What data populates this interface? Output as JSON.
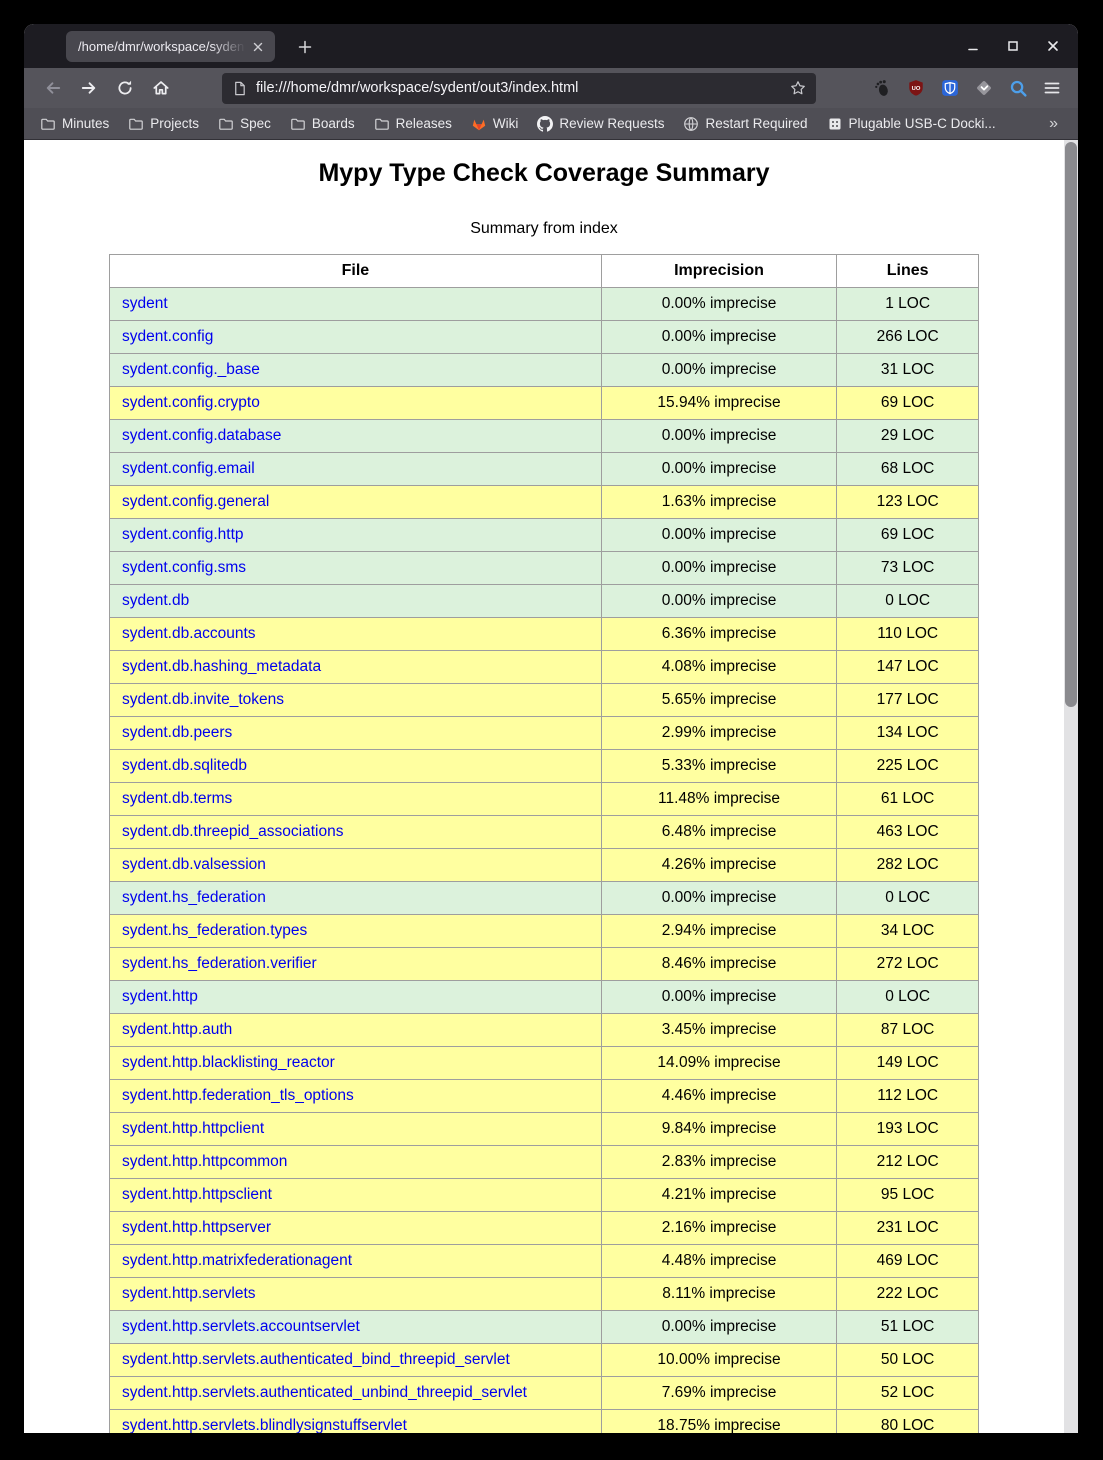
{
  "window": {
    "tab_title": "/home/dmr/workspace/syden",
    "url": "file:///home/dmr/workspace/sydent/out3/index.html",
    "controls": [
      "minimize",
      "maximize",
      "close"
    ]
  },
  "toolbar": {
    "nav_icons": [
      "back-icon",
      "forward-icon",
      "refresh-icon",
      "home-icon"
    ],
    "urlbar_icons": [
      "page-icon",
      "star-icon"
    ],
    "extension_icons": [
      "gnome-foot-icon",
      "ublock-origin-icon",
      "bitwarden-icon",
      "diamond-extension-icon",
      "search-icon",
      "hamburger-menu-icon"
    ],
    "ublock_badge_text": "UO"
  },
  "bookmarks": {
    "items": [
      {
        "label": "Minutes",
        "icon": "folder-icon"
      },
      {
        "label": "Projects",
        "icon": "folder-icon"
      },
      {
        "label": "Spec",
        "icon": "folder-icon"
      },
      {
        "label": "Boards",
        "icon": "folder-icon"
      },
      {
        "label": "Releases",
        "icon": "folder-icon"
      },
      {
        "label": "Wiki",
        "icon": "gitlab-icon"
      },
      {
        "label": "Review Requests",
        "icon": "github-icon"
      },
      {
        "label": "Restart Required",
        "icon": "globe-icon"
      },
      {
        "label": "Plugable USB-C Docki...",
        "icon": "device-icon"
      }
    ],
    "overflow_chevron": "»"
  },
  "page": {
    "title": "Mypy Type Check Coverage Summary",
    "caption": "Summary from index",
    "table": {
      "headers": [
        "File",
        "Imprecision",
        "Lines"
      ],
      "rows": [
        {
          "file": "sydent",
          "imprecision": "0.00% imprecise",
          "lines": "1 LOC",
          "quality": "good"
        },
        {
          "file": "sydent.config",
          "imprecision": "0.00% imprecise",
          "lines": "266 LOC",
          "quality": "good"
        },
        {
          "file": "sydent.config._base",
          "imprecision": "0.00% imprecise",
          "lines": "31 LOC",
          "quality": "good"
        },
        {
          "file": "sydent.config.crypto",
          "imprecision": "15.94% imprecise",
          "lines": "69 LOC",
          "quality": "warn"
        },
        {
          "file": "sydent.config.database",
          "imprecision": "0.00% imprecise",
          "lines": "29 LOC",
          "quality": "good"
        },
        {
          "file": "sydent.config.email",
          "imprecision": "0.00% imprecise",
          "lines": "68 LOC",
          "quality": "good"
        },
        {
          "file": "sydent.config.general",
          "imprecision": "1.63% imprecise",
          "lines": "123 LOC",
          "quality": "warn"
        },
        {
          "file": "sydent.config.http",
          "imprecision": "0.00% imprecise",
          "lines": "69 LOC",
          "quality": "good"
        },
        {
          "file": "sydent.config.sms",
          "imprecision": "0.00% imprecise",
          "lines": "73 LOC",
          "quality": "good"
        },
        {
          "file": "sydent.db",
          "imprecision": "0.00% imprecise",
          "lines": "0 LOC",
          "quality": "good"
        },
        {
          "file": "sydent.db.accounts",
          "imprecision": "6.36% imprecise",
          "lines": "110 LOC",
          "quality": "warn"
        },
        {
          "file": "sydent.db.hashing_metadata",
          "imprecision": "4.08% imprecise",
          "lines": "147 LOC",
          "quality": "warn"
        },
        {
          "file": "sydent.db.invite_tokens",
          "imprecision": "5.65% imprecise",
          "lines": "177 LOC",
          "quality": "warn"
        },
        {
          "file": "sydent.db.peers",
          "imprecision": "2.99% imprecise",
          "lines": "134 LOC",
          "quality": "warn"
        },
        {
          "file": "sydent.db.sqlitedb",
          "imprecision": "5.33% imprecise",
          "lines": "225 LOC",
          "quality": "warn"
        },
        {
          "file": "sydent.db.terms",
          "imprecision": "11.48% imprecise",
          "lines": "61 LOC",
          "quality": "warn"
        },
        {
          "file": "sydent.db.threepid_associations",
          "imprecision": "6.48% imprecise",
          "lines": "463 LOC",
          "quality": "warn"
        },
        {
          "file": "sydent.db.valsession",
          "imprecision": "4.26% imprecise",
          "lines": "282 LOC",
          "quality": "warn"
        },
        {
          "file": "sydent.hs_federation",
          "imprecision": "0.00% imprecise",
          "lines": "0 LOC",
          "quality": "good"
        },
        {
          "file": "sydent.hs_federation.types",
          "imprecision": "2.94% imprecise",
          "lines": "34 LOC",
          "quality": "warn"
        },
        {
          "file": "sydent.hs_federation.verifier",
          "imprecision": "8.46% imprecise",
          "lines": "272 LOC",
          "quality": "warn"
        },
        {
          "file": "sydent.http",
          "imprecision": "0.00% imprecise",
          "lines": "0 LOC",
          "quality": "good"
        },
        {
          "file": "sydent.http.auth",
          "imprecision": "3.45% imprecise",
          "lines": "87 LOC",
          "quality": "warn"
        },
        {
          "file": "sydent.http.blacklisting_reactor",
          "imprecision": "14.09% imprecise",
          "lines": "149 LOC",
          "quality": "warn"
        },
        {
          "file": "sydent.http.federation_tls_options",
          "imprecision": "4.46% imprecise",
          "lines": "112 LOC",
          "quality": "warn"
        },
        {
          "file": "sydent.http.httpclient",
          "imprecision": "9.84% imprecise",
          "lines": "193 LOC",
          "quality": "warn"
        },
        {
          "file": "sydent.http.httpcommon",
          "imprecision": "2.83% imprecise",
          "lines": "212 LOC",
          "quality": "warn"
        },
        {
          "file": "sydent.http.httpsclient",
          "imprecision": "4.21% imprecise",
          "lines": "95 LOC",
          "quality": "warn"
        },
        {
          "file": "sydent.http.httpserver",
          "imprecision": "2.16% imprecise",
          "lines": "231 LOC",
          "quality": "warn"
        },
        {
          "file": "sydent.http.matrixfederationagent",
          "imprecision": "4.48% imprecise",
          "lines": "469 LOC",
          "quality": "warn"
        },
        {
          "file": "sydent.http.servlets",
          "imprecision": "8.11% imprecise",
          "lines": "222 LOC",
          "quality": "warn"
        },
        {
          "file": "sydent.http.servlets.accountservlet",
          "imprecision": "0.00% imprecise",
          "lines": "51 LOC",
          "quality": "good"
        },
        {
          "file": "sydent.http.servlets.authenticated_bind_threepid_servlet",
          "imprecision": "10.00% imprecise",
          "lines": "50 LOC",
          "quality": "warn"
        },
        {
          "file": "sydent.http.servlets.authenticated_unbind_threepid_servlet",
          "imprecision": "7.69% imprecise",
          "lines": "52 LOC",
          "quality": "warn"
        },
        {
          "file": "sydent.http.servlets.blindlysignstuffservlet",
          "imprecision": "18.75% imprecise",
          "lines": "80 LOC",
          "quality": "warn"
        }
      ]
    }
  },
  "colors": {
    "good_row": "#dcf2dc",
    "warn_row": "#ffffa0",
    "link": "#0000ee",
    "table_border": "#9e9e9e",
    "tabbar_bg": "#1d1c22",
    "toolbar_bg": "#55545b",
    "bookmarks_bg": "#4f4e55",
    "urlbar_bg": "#2c2b31",
    "bitwarden_blue": "#2b66d9",
    "ublock_red": "#7c1414",
    "gitlab_orange": "#fc6d26",
    "search_blue": "#4d9fea"
  }
}
